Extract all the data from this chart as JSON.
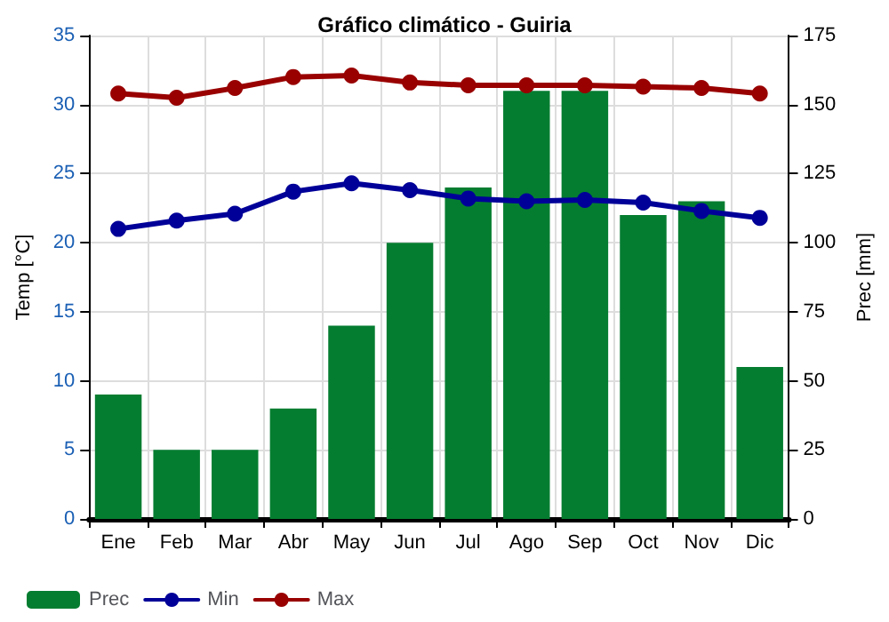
{
  "chart_data": {
    "type": "bar",
    "title": "Gráfico climático - Guiria",
    "ylabel": "Temp [°C]",
    "y2label": "Prec [mm]",
    "categories": [
      "Ene",
      "Feb",
      "Mar",
      "Abr",
      "May",
      "Jun",
      "Jul",
      "Ago",
      "Sep",
      "Oct",
      "Nov",
      "Dic"
    ],
    "series": [
      {
        "name": "Prec",
        "axis": "y2",
        "color": "#057d30",
        "values": [
          45,
          25,
          25,
          40,
          70,
          100,
          120,
          155,
          155,
          110,
          115,
          55
        ]
      },
      {
        "name": "Min",
        "type": "line",
        "color": "#000099",
        "values": [
          21.0,
          21.6,
          22.1,
          23.7,
          24.3,
          23.8,
          23.2,
          23.0,
          23.1,
          22.9,
          22.3,
          21.8
        ]
      },
      {
        "name": "Max",
        "type": "line",
        "color": "#990000",
        "values": [
          30.8,
          30.5,
          31.2,
          32.0,
          32.1,
          31.6,
          31.4,
          31.4,
          31.4,
          31.3,
          31.2,
          30.8
        ]
      }
    ],
    "ylim": [
      0,
      35
    ],
    "yticks": [
      0,
      5,
      10,
      15,
      20,
      25,
      30,
      35
    ],
    "y2lim": [
      0,
      175
    ],
    "y2ticks": [
      0,
      25,
      50,
      75,
      100,
      125,
      150,
      175
    ],
    "grid": true,
    "legend": "bottom",
    "marker": "circle",
    "line_style": "solid"
  }
}
